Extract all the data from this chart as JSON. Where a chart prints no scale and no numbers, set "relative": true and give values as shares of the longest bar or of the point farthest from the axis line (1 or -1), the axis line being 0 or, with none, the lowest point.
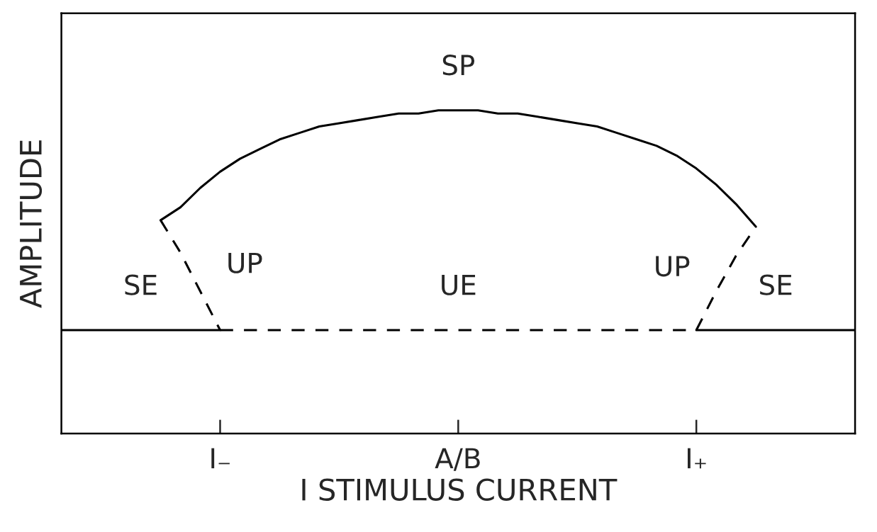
{
  "chart_data": {
    "type": "line",
    "relative": true,
    "xlabel": "I STIMULUS CURRENT",
    "ylabel": "AMPLITUDE",
    "tick_labels": "x",
    "grid": false,
    "legend": false,
    "marker": "none",
    "categories": [
      null,
      null,
      null,
      null,
      null,
      null,
      null,
      null,
      "I₋",
      null,
      null,
      null,
      null,
      null,
      null,
      null,
      null,
      null,
      null,
      null,
      "A/B",
      null,
      null,
      null,
      null,
      null,
      null,
      null,
      null,
      null,
      null,
      null,
      "I₊",
      null,
      null,
      null,
      null,
      null,
      null,
      null,
      null
    ],
    "series": [
      {
        "name": "SP",
        "color": "#000000",
        "line_style": "solid",
        "values": [
          null,
          null,
          null,
          null,
          null,
          0.66,
          0.7,
          0.76,
          0.81,
          0.85,
          0.88,
          0.91,
          0.93,
          0.95,
          0.96,
          0.97,
          0.98,
          0.99,
          0.99,
          1.0,
          1.0,
          1.0,
          0.99,
          0.99,
          0.98,
          0.97,
          0.96,
          0.95,
          0.93,
          0.91,
          0.89,
          0.86,
          0.82,
          0.77,
          0.71,
          0.64,
          null,
          null,
          null,
          null,
          null
        ]
      },
      {
        "name": "UP",
        "color": "#000000",
        "line_style": "dashed",
        "values": [
          null,
          null,
          null,
          null,
          null,
          0.66,
          0.56,
          0.44,
          0.32,
          null,
          null,
          null,
          null,
          null,
          null,
          null,
          null,
          null,
          null,
          null,
          null,
          null,
          null,
          null,
          null,
          null,
          null,
          null,
          null,
          null,
          null,
          null,
          null,
          null,
          null,
          null,
          null,
          null,
          null,
          null,
          null
        ]
      },
      {
        "name": "UP",
        "color": "#000000",
        "line_style": "dashed",
        "values": [
          null,
          null,
          null,
          null,
          null,
          null,
          null,
          null,
          null,
          null,
          null,
          null,
          null,
          null,
          null,
          null,
          null,
          null,
          null,
          null,
          null,
          null,
          null,
          null,
          null,
          null,
          null,
          null,
          null,
          null,
          null,
          null,
          0.32,
          0.44,
          0.55,
          0.64,
          null,
          null,
          null,
          null,
          null
        ]
      },
      {
        "name": "SE",
        "color": "#000000",
        "line_style": "solid",
        "values": [
          0.32,
          0.32,
          0.32,
          0.32,
          0.32,
          0.32,
          0.32,
          0.32,
          0.32,
          null,
          null,
          null,
          null,
          null,
          null,
          null,
          null,
          null,
          null,
          null,
          null,
          null,
          null,
          null,
          null,
          null,
          null,
          null,
          null,
          null,
          null,
          null,
          null,
          null,
          null,
          null,
          null,
          null,
          null,
          null,
          null
        ]
      },
      {
        "name": "UE",
        "color": "#000000",
        "line_style": "dashed",
        "values": [
          null,
          null,
          null,
          null,
          null,
          null,
          null,
          null,
          0.32,
          0.32,
          0.32,
          0.32,
          0.32,
          0.32,
          0.32,
          0.32,
          0.32,
          0.32,
          0.32,
          0.32,
          0.32,
          0.32,
          0.32,
          0.32,
          0.32,
          0.32,
          0.32,
          0.32,
          0.32,
          0.32,
          0.32,
          0.32,
          0.32,
          null,
          null,
          null,
          null,
          null,
          null,
          null,
          null
        ]
      },
      {
        "name": "SE",
        "color": "#000000",
        "line_style": "solid",
        "values": [
          null,
          null,
          null,
          null,
          null,
          null,
          null,
          null,
          null,
          null,
          null,
          null,
          null,
          null,
          null,
          null,
          null,
          null,
          null,
          null,
          null,
          null,
          null,
          null,
          null,
          null,
          null,
          null,
          null,
          null,
          null,
          null,
          0.32,
          0.32,
          0.32,
          0.32,
          0.32,
          0.32,
          0.32,
          0.32,
          0.32
        ]
      }
    ]
  }
}
